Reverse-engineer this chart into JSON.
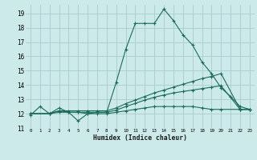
{
  "title": "",
  "xlabel": "Humidex (Indice chaleur)",
  "ylabel": "",
  "bg_color": "#cceaea",
  "grid_color": "#aacccc",
  "line_color": "#1a6b5a",
  "xlim": [
    -0.5,
    23.5
  ],
  "ylim": [
    11,
    19.6
  ],
  "yticks": [
    11,
    12,
    13,
    14,
    15,
    16,
    17,
    18,
    19
  ],
  "xticks": [
    0,
    1,
    2,
    3,
    4,
    5,
    6,
    7,
    8,
    9,
    10,
    11,
    12,
    13,
    14,
    15,
    16,
    17,
    18,
    19,
    20,
    21,
    22,
    23
  ],
  "xtick_labels": [
    "0",
    "1",
    "2",
    "3",
    "4",
    "5",
    "6",
    "7",
    "8",
    "9",
    "10",
    "11",
    "12",
    "13",
    "14",
    "15",
    "16",
    "17",
    "18",
    "19",
    "20",
    "21",
    "22",
    "23"
  ],
  "lines": [
    {
      "x": [
        0,
        1,
        2,
        3,
        4,
        5,
        6,
        7,
        8,
        9,
        10,
        11,
        12,
        13,
        14,
        15,
        16,
        17,
        18,
        19,
        20,
        21,
        22,
        23
      ],
      "y": [
        11.9,
        12.5,
        12.0,
        12.4,
        12.1,
        11.5,
        12.0,
        12.1,
        12.1,
        14.2,
        16.5,
        18.3,
        18.3,
        18.3,
        19.3,
        18.5,
        17.5,
        16.8,
        15.6,
        14.8,
        13.8,
        13.2,
        12.5,
        12.3
      ]
    },
    {
      "x": [
        0,
        2,
        3,
        4,
        5,
        6,
        7,
        8,
        9,
        10,
        11,
        12,
        13,
        14,
        15,
        16,
        17,
        18,
        19,
        20,
        22,
        23
      ],
      "y": [
        12.0,
        12.0,
        12.2,
        12.2,
        12.2,
        12.2,
        12.2,
        12.2,
        12.4,
        12.7,
        12.95,
        13.2,
        13.45,
        13.65,
        13.85,
        14.05,
        14.25,
        14.45,
        14.6,
        14.8,
        12.3,
        12.3
      ]
    },
    {
      "x": [
        0,
        2,
        3,
        4,
        5,
        6,
        7,
        8,
        9,
        10,
        11,
        12,
        13,
        14,
        15,
        16,
        17,
        18,
        19,
        20,
        22,
        23
      ],
      "y": [
        12.0,
        12.0,
        12.2,
        12.1,
        12.1,
        12.1,
        12.1,
        12.1,
        12.25,
        12.5,
        12.72,
        12.95,
        13.15,
        13.3,
        13.45,
        13.55,
        13.65,
        13.75,
        13.85,
        13.95,
        12.3,
        12.3
      ]
    },
    {
      "x": [
        0,
        2,
        3,
        4,
        5,
        6,
        7,
        8,
        9,
        10,
        11,
        12,
        13,
        14,
        15,
        16,
        17,
        18,
        19,
        20,
        22,
        23
      ],
      "y": [
        12.0,
        12.0,
        12.1,
        12.1,
        12.1,
        12.0,
        12.0,
        12.0,
        12.1,
        12.2,
        12.3,
        12.4,
        12.5,
        12.5,
        12.5,
        12.5,
        12.5,
        12.4,
        12.3,
        12.3,
        12.3,
        12.3
      ]
    }
  ]
}
